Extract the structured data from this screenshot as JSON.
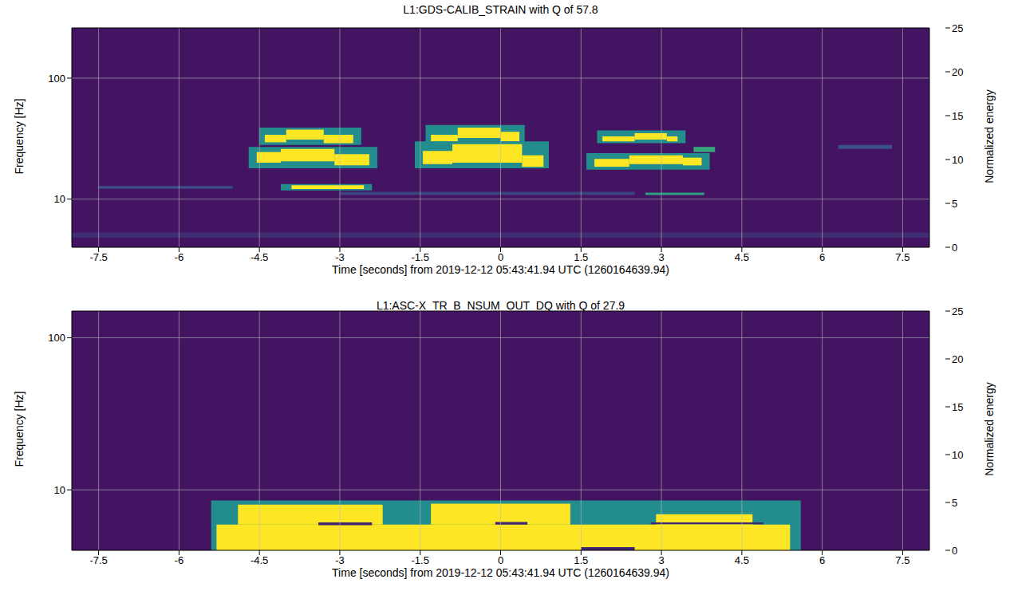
{
  "chart_data": [
    {
      "type": "heatmap",
      "title": "L1:GDS-CALIB_STRAIN with Q of 57.8",
      "x_label": "Time [seconds] from 2019-12-12 05:43:41.94 UTC (1260164639.94)",
      "y_label": "Frequency [Hz]",
      "xlim": [
        -8,
        8
      ],
      "xticks": [
        -7.5,
        -6,
        -4.5,
        -3,
        -1.5,
        0,
        1.5,
        3,
        4.5,
        6,
        7.5
      ],
      "ylim": [
        4,
        260
      ],
      "yticks": [
        10,
        100
      ],
      "log": "y",
      "grid": true,
      "cells": [
        {
          "x": [
            -8,
            8
          ],
          "y": [
            4,
            260
          ],
          "value": 1.5
        },
        {
          "x": [
            -8,
            8
          ],
          "y": [
            4.8,
            5.3
          ],
          "value": 3.5
        },
        {
          "x": [
            -7.5,
            -5
          ],
          "y": [
            12.2,
            12.8
          ],
          "value": 6
        },
        {
          "x": [
            -3,
            2.5
          ],
          "y": [
            10.8,
            11.5
          ],
          "value": 5
        },
        {
          "x": [
            6.3,
            7.3
          ],
          "y": [
            26,
            28
          ],
          "value": 6
        },
        {
          "x": [
            -4.5,
            -2.6
          ],
          "y": [
            28,
            39
          ],
          "value": 12
        },
        {
          "x": [
            -4.4,
            -4.0
          ],
          "y": [
            29.5,
            34
          ],
          "value": 25
        },
        {
          "x": [
            -4.0,
            -3.3
          ],
          "y": [
            31,
            37.5
          ],
          "value": 25
        },
        {
          "x": [
            -3.3,
            -2.75
          ],
          "y": [
            29,
            34
          ],
          "value": 25
        },
        {
          "x": [
            -4.7,
            -2.3
          ],
          "y": [
            18,
            27
          ],
          "value": 12
        },
        {
          "x": [
            -4.55,
            -4.1
          ],
          "y": [
            20,
            24.5
          ],
          "value": 25
        },
        {
          "x": [
            -4.1,
            -3.1
          ],
          "y": [
            20.5,
            26
          ],
          "value": 25
        },
        {
          "x": [
            -3.1,
            -2.45
          ],
          "y": [
            19,
            23.5
          ],
          "value": 25
        },
        {
          "x": [
            -4.1,
            -2.4
          ],
          "y": [
            11.8,
            13.3
          ],
          "value": 12
        },
        {
          "x": [
            -3.9,
            -2.55
          ],
          "y": [
            12.1,
            13
          ],
          "value": 25
        },
        {
          "x": [
            -1.4,
            0.45
          ],
          "y": [
            29,
            41
          ],
          "value": 12
        },
        {
          "x": [
            -1.3,
            -0.8
          ],
          "y": [
            30,
            34
          ],
          "value": 25
        },
        {
          "x": [
            -0.8,
            0.0
          ],
          "y": [
            32,
            39
          ],
          "value": 25
        },
        {
          "x": [
            0.0,
            0.35
          ],
          "y": [
            30,
            36
          ],
          "value": 25
        },
        {
          "x": [
            -1.6,
            0.9
          ],
          "y": [
            18,
            30
          ],
          "value": 12
        },
        {
          "x": [
            -1.45,
            -0.9
          ],
          "y": [
            19.5,
            25
          ],
          "value": 25
        },
        {
          "x": [
            -0.9,
            0.4
          ],
          "y": [
            20,
            28.5
          ],
          "value": 25
        },
        {
          "x": [
            0.4,
            0.8
          ],
          "y": [
            18.5,
            23
          ],
          "value": 25
        },
        {
          "x": [
            1.8,
            3.45
          ],
          "y": [
            29,
            37
          ],
          "value": 12
        },
        {
          "x": [
            1.9,
            2.5
          ],
          "y": [
            30,
            33
          ],
          "value": 25
        },
        {
          "x": [
            2.5,
            3.1
          ],
          "y": [
            31,
            35
          ],
          "value": 25
        },
        {
          "x": [
            3.1,
            3.3
          ],
          "y": [
            30,
            33
          ],
          "value": 25
        },
        {
          "x": [
            1.6,
            3.9
          ],
          "y": [
            17.5,
            24
          ],
          "value": 12
        },
        {
          "x": [
            1.75,
            2.4
          ],
          "y": [
            18.5,
            21.5
          ],
          "value": 25
        },
        {
          "x": [
            2.4,
            3.4
          ],
          "y": [
            19.5,
            23
          ],
          "value": 25
        },
        {
          "x": [
            3.4,
            3.75
          ],
          "y": [
            19,
            22
          ],
          "value": 25
        },
        {
          "x": [
            2.7,
            3.8
          ],
          "y": [
            10.8,
            11.3
          ],
          "value": 14
        },
        {
          "x": [
            3.6,
            4.0
          ],
          "y": [
            24.5,
            27
          ],
          "value": 15
        }
      ],
      "colorbar": {
        "range": [
          0,
          25
        ],
        "ticks": [
          0,
          5,
          10,
          15,
          20,
          25
        ],
        "label": "Normalized energy"
      }
    },
    {
      "type": "heatmap",
      "title": "L1:ASC-X_TR_B_NSUM_OUT_DQ with Q of 27.9",
      "x_label": "Time [seconds] from 2019-12-12 05:43:41.94 UTC (1260164639.94)",
      "y_label": "Frequency [Hz]",
      "xlim": [
        -8,
        8
      ],
      "xticks": [
        -7.5,
        -6,
        -4.5,
        -3,
        -1.5,
        0,
        1.5,
        3,
        4.5,
        6,
        7.5
      ],
      "ylim": [
        4,
        150
      ],
      "yticks": [
        10,
        100
      ],
      "log": "y",
      "grid": true,
      "cells": [
        {
          "x": [
            -8,
            8
          ],
          "y": [
            4,
            150
          ],
          "value": 1.5
        },
        {
          "x": [
            -5.4,
            5.6
          ],
          "y": [
            4,
            8.5
          ],
          "value": 12
        },
        {
          "x": [
            -5.3,
            5.4
          ],
          "y": [
            4,
            5.9
          ],
          "value": 25
        },
        {
          "x": [
            -4.9,
            -2.2
          ],
          "y": [
            5.9,
            8.0
          ],
          "value": 25
        },
        {
          "x": [
            -1.3,
            1.3
          ],
          "y": [
            5.9,
            8.1
          ],
          "value": 25
        },
        {
          "x": [
            2.9,
            4.7
          ],
          "y": [
            5.9,
            6.9
          ],
          "value": 25
        },
        {
          "x": [
            -3.4,
            -2.4
          ],
          "y": [
            5.85,
            6.1
          ],
          "value": 3
        },
        {
          "x": [
            -0.1,
            0.5
          ],
          "y": [
            5.9,
            6.15
          ],
          "value": 3
        },
        {
          "x": [
            2.8,
            4.9
          ],
          "y": [
            5.95,
            6.1
          ],
          "value": 3
        },
        {
          "x": [
            1.5,
            2.5
          ],
          "y": [
            4,
            4.2
          ],
          "value": 3
        }
      ],
      "colorbar": {
        "range": [
          0,
          25
        ],
        "ticks": [
          0,
          5,
          10,
          15,
          20,
          25
        ],
        "label": "Normalized energy"
      }
    }
  ]
}
